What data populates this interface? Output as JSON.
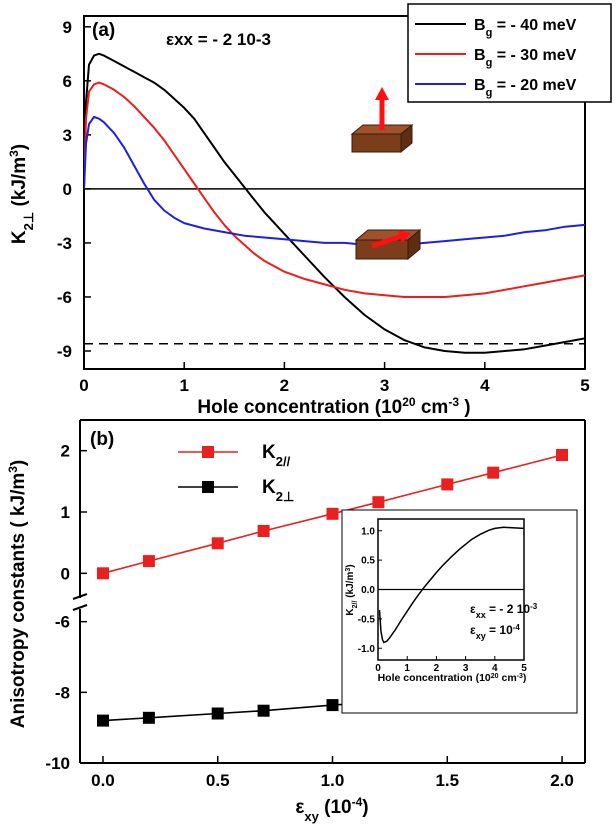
{
  "chart_data": [
    {
      "id": "panel-a",
      "type": "line",
      "panel_label": "(a)",
      "annotation": "εxx = - 2 10-3",
      "xlabel": "Hole concentration (1020 cm-3 )",
      "ylabel": "K2⊥ (kJ/m3)",
      "xlim": [
        0,
        5
      ],
      "ylim": [
        -10,
        9.6
      ],
      "xticks": [
        "0",
        "1",
        "2",
        "3",
        "4",
        "5"
      ],
      "yticks": [
        "9",
        "6",
        "3",
        "0",
        "-3",
        "-6",
        "-9"
      ],
      "legend_position": "top-right",
      "reference_lines": [
        {
          "y": 0,
          "style": "solid"
        },
        {
          "y": -8.6,
          "style": "dashed"
        }
      ],
      "series": [
        {
          "name": "Bg = - 40 meV",
          "color": "#000000",
          "x": [
            0,
            0.02,
            0.05,
            0.1,
            0.15,
            0.2,
            0.3,
            0.4,
            0.5,
            0.6,
            0.7,
            0.8,
            0.9,
            1.0,
            1.1,
            1.2,
            1.3,
            1.4,
            1.5,
            1.6,
            1.7,
            1.8,
            1.9,
            2.0,
            2.2,
            2.4,
            2.6,
            2.8,
            3.0,
            3.2,
            3.4,
            3.6,
            3.8,
            4.0,
            4.2,
            4.4,
            4.6,
            4.8,
            5.0
          ],
          "y": [
            0,
            4.8,
            6.9,
            7.4,
            7.5,
            7.4,
            7.1,
            6.8,
            6.5,
            6.2,
            5.9,
            5.5,
            5.0,
            4.5,
            3.9,
            3.1,
            2.3,
            1.5,
            0.8,
            0.1,
            -0.6,
            -1.3,
            -1.9,
            -2.5,
            -3.7,
            -4.9,
            -6.0,
            -7.0,
            -7.8,
            -8.4,
            -8.8,
            -9.0,
            -9.1,
            -9.1,
            -9.0,
            -8.9,
            -8.7,
            -8.5,
            -8.3
          ]
        },
        {
          "name": "Bg = - 30 meV",
          "color": "#ee1c1c",
          "x": [
            0,
            0.02,
            0.05,
            0.1,
            0.15,
            0.2,
            0.3,
            0.4,
            0.5,
            0.6,
            0.7,
            0.8,
            0.9,
            1.0,
            1.1,
            1.2,
            1.3,
            1.4,
            1.5,
            1.6,
            1.7,
            1.8,
            2.0,
            2.2,
            2.4,
            2.6,
            2.8,
            3.0,
            3.2,
            3.4,
            3.6,
            3.8,
            4.0,
            4.2,
            4.4,
            4.6,
            4.8,
            5.0
          ],
          "y": [
            0,
            3.9,
            5.4,
            5.8,
            5.9,
            5.8,
            5.5,
            5.1,
            4.6,
            4.0,
            3.4,
            2.7,
            1.9,
            1.1,
            0.3,
            -0.5,
            -1.3,
            -2.0,
            -2.6,
            -3.1,
            -3.6,
            -4.0,
            -4.6,
            -5.0,
            -5.3,
            -5.6,
            -5.8,
            -5.9,
            -6.0,
            -6.0,
            -6.0,
            -5.9,
            -5.8,
            -5.6,
            -5.4,
            -5.2,
            -5.0,
            -4.8
          ]
        },
        {
          "name": "Bg = - 20 meV",
          "color": "#1f1fe0",
          "x": [
            0,
            0.02,
            0.05,
            0.1,
            0.15,
            0.2,
            0.3,
            0.4,
            0.5,
            0.6,
            0.7,
            0.8,
            0.9,
            1.0,
            1.2,
            1.4,
            1.6,
            1.8,
            2.0,
            2.2,
            2.4,
            2.6,
            2.8,
            3.0,
            3.2,
            3.4,
            3.6,
            3.8,
            4.0,
            4.2,
            4.4,
            4.6,
            4.8,
            5.0
          ],
          "y": [
            0,
            2.5,
            3.6,
            4.0,
            3.9,
            3.7,
            3.1,
            2.3,
            1.3,
            0.3,
            -0.6,
            -1.2,
            -1.6,
            -1.9,
            -2.2,
            -2.4,
            -2.6,
            -2.7,
            -2.8,
            -2.9,
            -3.0,
            -3.0,
            -3.1,
            -3.1,
            -3.1,
            -3.0,
            -2.9,
            -2.8,
            -2.7,
            -2.6,
            -2.4,
            -2.3,
            -2.1,
            -2.0
          ]
        }
      ]
    },
    {
      "id": "panel-b",
      "type": "line",
      "panel_label": "(b)",
      "xlabel": "εxy (10-4)",
      "ylabel": "Anisotropy constants ( kJ/m3)",
      "xlim": [
        -0.1,
        2.1
      ],
      "axis_break": true,
      "ylim_upper": [
        -0.5,
        2.5
      ],
      "ylim_lower": [
        -10,
        -5.5
      ],
      "xticks": [
        "0.0",
        "0.5",
        "1.0",
        "1.5",
        "2.0"
      ],
      "yticks_upper": [
        "2",
        "1",
        "0"
      ],
      "yticks_lower": [
        "-6",
        "-8",
        "-10"
      ],
      "legend_position": "top-left",
      "series": [
        {
          "name": "K2//",
          "color": "#e8201f",
          "marker": "square",
          "x": [
            0,
            0.2,
            0.5,
            0.7,
            1.0,
            1.2,
            1.5,
            1.7,
            2.0
          ],
          "y": [
            0.0,
            0.2,
            0.49,
            0.69,
            0.97,
            1.16,
            1.45,
            1.64,
            1.93
          ]
        },
        {
          "name": "K2⊥",
          "color": "#000000",
          "marker": "square",
          "x": [
            0,
            0.2,
            0.5,
            0.7,
            1.0,
            1.2,
            1.5,
            1.7,
            2.0
          ],
          "y": [
            -8.8,
            -8.72,
            -8.6,
            -8.52,
            -8.36,
            -8.28,
            -8.12,
            -8.02,
            -7.85
          ]
        }
      ]
    },
    {
      "id": "panel-b-inset",
      "type": "line",
      "xlabel": "Hole concentration (1020 cm-3 )",
      "ylabel": "K2// (kJ/m3)",
      "annotations": [
        "εxx = - 2 10-3",
        "εxy = 10-4"
      ],
      "xlim": [
        0,
        5
      ],
      "ylim": [
        -1.2,
        1.2
      ],
      "xticks": [
        "0",
        "1",
        "2",
        "3",
        "4",
        "5"
      ],
      "yticks": [
        "1.0",
        "0.5",
        "0.0",
        "-0.5",
        "-1.0"
      ],
      "reference_lines": [
        {
          "y": 0,
          "style": "solid"
        }
      ],
      "series": [
        {
          "name": "",
          "color": "#000000",
          "x": [
            0.05,
            0.1,
            0.15,
            0.2,
            0.3,
            0.4,
            0.6,
            0.8,
            1.0,
            1.2,
            1.4,
            1.6,
            1.8,
            2.0,
            2.2,
            2.5,
            2.8,
            3.0,
            3.2,
            3.5,
            3.8,
            4.0,
            4.3,
            4.6,
            5.0
          ],
          "y": [
            -0.35,
            -0.7,
            -0.85,
            -0.9,
            -0.88,
            -0.82,
            -0.68,
            -0.52,
            -0.37,
            -0.22,
            -0.08,
            0.05,
            0.17,
            0.29,
            0.4,
            0.55,
            0.69,
            0.77,
            0.85,
            0.94,
            1.01,
            1.04,
            1.06,
            1.05,
            1.04
          ]
        }
      ]
    }
  ]
}
